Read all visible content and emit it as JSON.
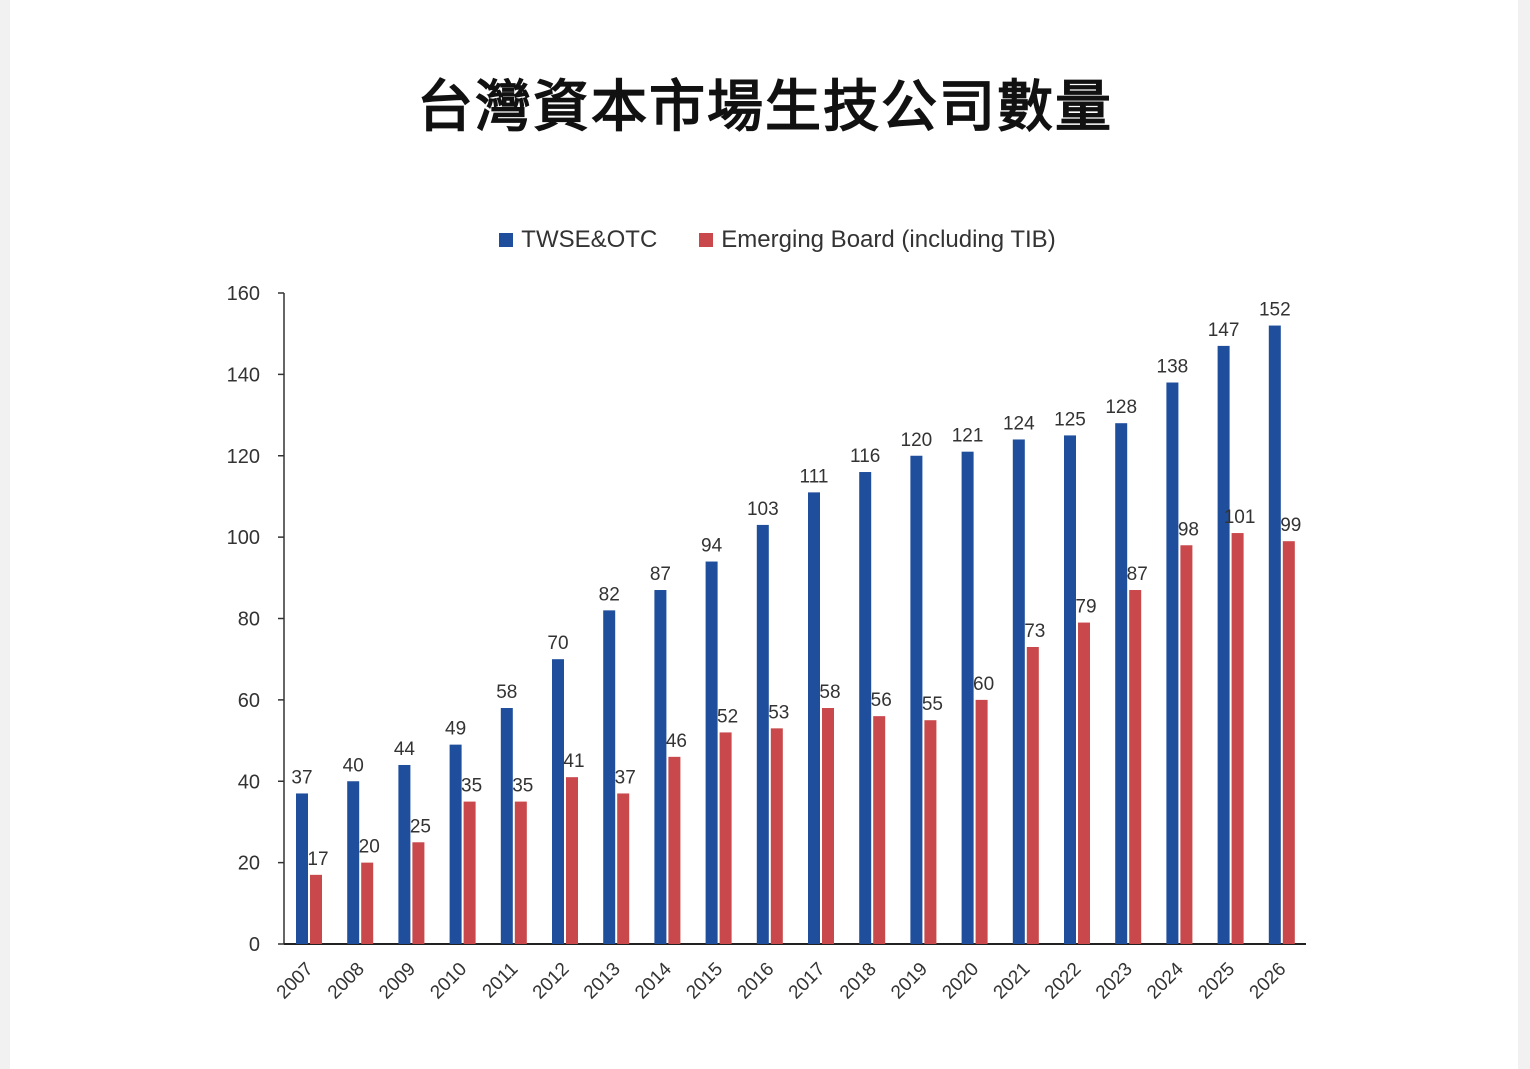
{
  "chart_data": {
    "type": "bar",
    "title": "台灣資本市場生技公司數量",
    "categories": [
      "2007",
      "2008",
      "2009",
      "2010",
      "2011",
      "2012",
      "2013",
      "2014",
      "2015",
      "2016",
      "2017",
      "2018",
      "2019",
      "2020",
      "2021",
      "2022",
      "2023",
      "2024",
      "2025",
      "2026"
    ],
    "series": [
      {
        "name": "TWSE&OTC",
        "color": "#1f4e9c",
        "values": [
          37,
          40,
          44,
          49,
          58,
          70,
          82,
          87,
          94,
          103,
          111,
          116,
          120,
          121,
          124,
          125,
          128,
          138,
          147,
          152
        ]
      },
      {
        "name": "Emerging Board (including TIB)",
        "color": "#c9484b",
        "values": [
          17,
          20,
          25,
          35,
          35,
          41,
          37,
          46,
          52,
          53,
          58,
          56,
          55,
          60,
          73,
          79,
          87,
          98,
          101,
          99
        ]
      }
    ],
    "ylim": [
      0,
      160
    ],
    "yticks": [
      0,
      20,
      40,
      60,
      80,
      100,
      120,
      140,
      160
    ],
    "xlabel": "",
    "ylabel": "",
    "legend": "top-center",
    "grid": false
  }
}
